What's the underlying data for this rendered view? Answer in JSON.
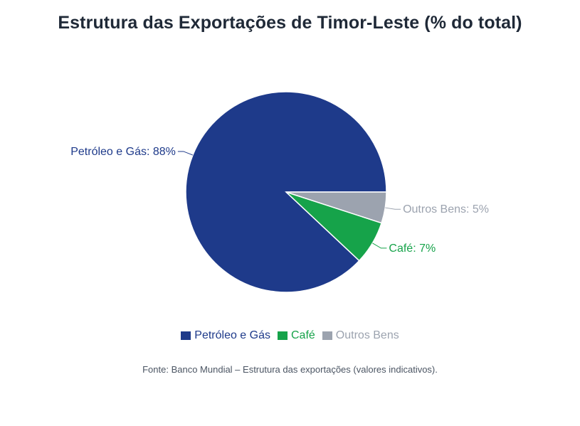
{
  "chart_data": {
    "type": "pie",
    "title": "Estrutura das Exportações de Timor-Leste (% do total)",
    "categories": [
      "Petróleo e Gás",
      "Café",
      "Outros Bens"
    ],
    "values": [
      88,
      7,
      5
    ],
    "labels": [
      "Petróleo e Gás: 88%",
      "Café: 7%",
      "Outros Bens: 5%"
    ],
    "colors": [
      "#1e3a8a",
      "#16a34a",
      "#9ca3af"
    ],
    "legend_position": "bottom",
    "slice_order": "clockwise-from-3-oclock-reversed"
  },
  "source_note": "Fonte: Banco Mundial – Estrutura das exportações (valores indicativos)."
}
